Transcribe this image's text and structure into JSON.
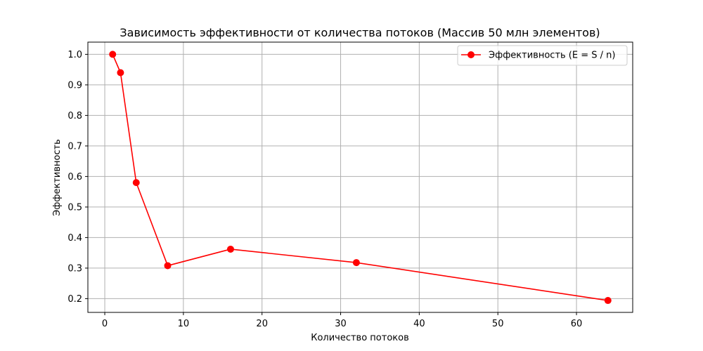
{
  "chart_data": {
    "type": "line",
    "title": "Зависимость эффективности от количества потоков (Массив 50 млн элементов)",
    "xlabel": "Количество потоков",
    "ylabel": "Эффективность",
    "xlim": [
      -2.15,
      67.15
    ],
    "ylim": [
      0.155,
      1.04
    ],
    "x_ticks": [
      0,
      10,
      20,
      30,
      40,
      50,
      60
    ],
    "x_tick_labels": [
      "0",
      "10",
      "20",
      "30",
      "40",
      "50",
      "60"
    ],
    "y_ticks": [
      0.2,
      0.3,
      0.4,
      0.5,
      0.6,
      0.7,
      0.8,
      0.9,
      1.0
    ],
    "y_tick_labels": [
      "0.2",
      "0.3",
      "0.4",
      "0.5",
      "0.6",
      "0.7",
      "0.8",
      "0.9",
      "1.0"
    ],
    "grid": true,
    "legend_position": "top-right",
    "series": [
      {
        "name": "Эффективность (E = S / n)",
        "color": "#ff0000",
        "marker": "circle",
        "x": [
          1,
          2,
          4,
          8,
          16,
          32,
          64
        ],
        "values": [
          1.0,
          0.94,
          0.58,
          0.308,
          0.362,
          0.318,
          0.194
        ]
      }
    ]
  }
}
